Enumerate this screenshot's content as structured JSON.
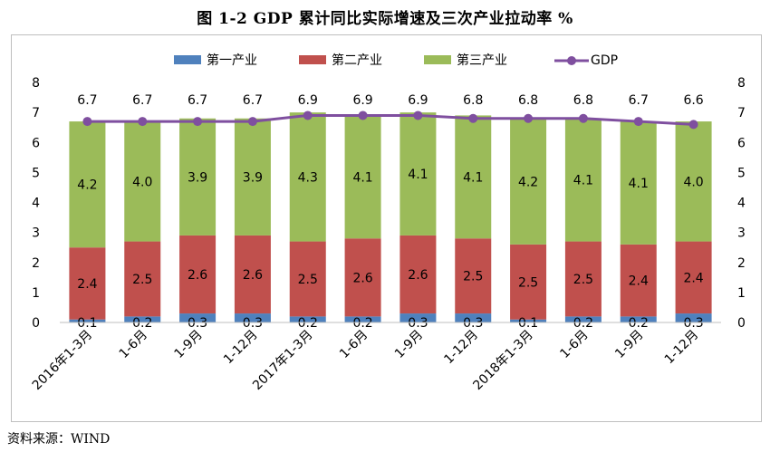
{
  "title": "图 1-2   GDP 累计同比实际增速及三次产业拉动率   %",
  "source": "资料来源：WIND",
  "chart_data": {
    "type": "bar",
    "stacked": true,
    "categories": [
      "2016年1-3月",
      "1-6月",
      "1-9月",
      "1-12月",
      "2017年1-3月",
      "1-6月",
      "1-9月",
      "1-12月",
      "2018年1-3月",
      "1-6月",
      "1-9月",
      "1-12月"
    ],
    "series": [
      {
        "name": "第一产业",
        "type": "bar",
        "color": "#4f81bd",
        "values": [
          0.1,
          0.2,
          0.3,
          0.3,
          0.2,
          0.2,
          0.3,
          0.3,
          0.1,
          0.2,
          0.2,
          0.3
        ]
      },
      {
        "name": "第二产业",
        "type": "bar",
        "color": "#c0504d",
        "values": [
          2.4,
          2.5,
          2.6,
          2.6,
          2.5,
          2.6,
          2.6,
          2.5,
          2.5,
          2.5,
          2.4,
          2.4
        ]
      },
      {
        "name": "第三产业",
        "type": "bar",
        "color": "#9bbb59",
        "values": [
          4.2,
          4.0,
          3.9,
          3.9,
          4.3,
          4.1,
          4.1,
          4.1,
          4.2,
          4.1,
          4.1,
          4.0
        ]
      },
      {
        "name": "GDP",
        "type": "line",
        "color": "#7f4f9f",
        "values": [
          6.7,
          6.7,
          6.7,
          6.7,
          6.9,
          6.9,
          6.9,
          6.8,
          6.8,
          6.8,
          6.7,
          6.6
        ]
      }
    ],
    "ylim": [
      0,
      8
    ],
    "yticks": [
      0,
      1,
      2,
      3,
      4,
      5,
      6,
      7,
      8
    ],
    "secondary_ylim": [
      0,
      8
    ],
    "legend_position": "top",
    "grid": false
  }
}
